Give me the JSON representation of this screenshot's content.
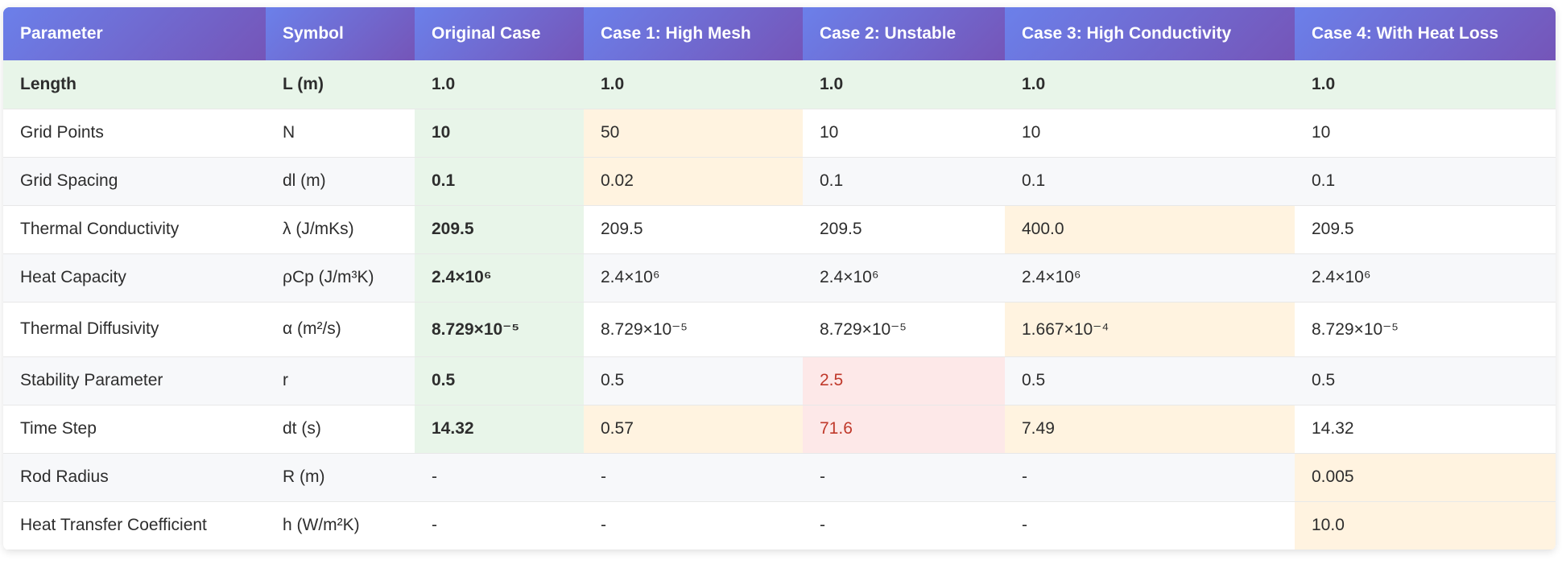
{
  "table": {
    "headers": [
      "Parameter",
      "Symbol",
      "Original Case",
      "Case 1: High Mesh",
      "Case 2: Unstable",
      "Case 3: High Conductivity",
      "Case 4: With Heat Loss"
    ],
    "rows": [
      [
        "Length",
        "L (m)",
        "1.0",
        "1.0",
        "1.0",
        "1.0",
        "1.0"
      ],
      [
        "Grid Points",
        "N",
        "10",
        "50",
        "10",
        "10",
        "10"
      ],
      [
        "Grid Spacing",
        "dl (m)",
        "0.1",
        "0.02",
        "0.1",
        "0.1",
        "0.1"
      ],
      [
        "Thermal Conductivity",
        "λ (J/mKs)",
        "209.5",
        "209.5",
        "209.5",
        "400.0",
        "209.5"
      ],
      [
        "Heat Capacity",
        "ρCp (J/m³K)",
        "2.4×10⁶",
        "2.4×10⁶",
        "2.4×10⁶",
        "2.4×10⁶",
        "2.4×10⁶"
      ],
      [
        "Thermal Diffusivity",
        "α (m²/s)",
        "8.729×10⁻⁵",
        "8.729×10⁻⁵",
        "8.729×10⁻⁵",
        "1.667×10⁻⁴",
        "8.729×10⁻⁵"
      ],
      [
        "Stability Parameter",
        "r",
        "0.5",
        "0.5",
        "2.5",
        "0.5",
        "0.5"
      ],
      [
        "Time Step",
        "dt (s)",
        "14.32",
        "0.57",
        "71.6",
        "7.49",
        "14.32"
      ],
      [
        "Rod Radius",
        "R (m)",
        "-",
        "-",
        "-",
        "-",
        "0.005"
      ],
      [
        "Heat Transfer Coefficient",
        "h (W/m²K)",
        "-",
        "-",
        "-",
        "-",
        "10.0"
      ]
    ]
  },
  "colors": {
    "header_gradient_start": "#6b80ea",
    "header_gradient_end": "#7555b8",
    "original_case_bg": "#e8f5e9",
    "changed_value_bg": "#fff3e0",
    "unstable_bg": "#fde8e8",
    "unstable_text": "#c0392b"
  }
}
